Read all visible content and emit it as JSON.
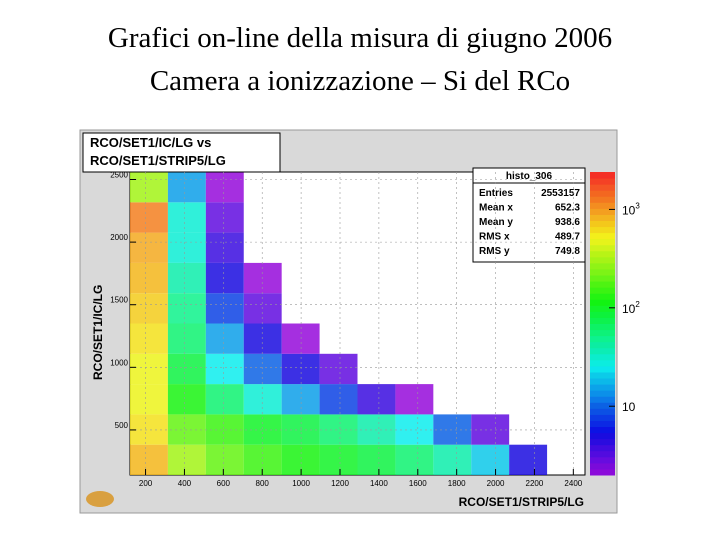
{
  "slide": {
    "title_lines": [
      "Grafici on-line della misura di giugno 2006",
      "Camera a ionizzazione – Si del RCo"
    ]
  },
  "chart_data": {
    "type": "heatmap",
    "title_lines": [
      "RCO/SET1/IC/LG vs",
      "RCO/SET1/STRIP5/LG"
    ],
    "x_label": "RCO/SET1/STRIP5/LG",
    "y_label": "RCO/SET1/IC/LG",
    "xlim": [
      120,
      2460
    ],
    "ylim": [
      140,
      2560
    ],
    "xticks": [
      200,
      400,
      600,
      800,
      1000,
      1200,
      1400,
      1600,
      1800,
      2000,
      2200,
      2400
    ],
    "yticks": [
      500,
      1000,
      1500,
      2000,
      2500
    ],
    "grid": true,
    "log_z": true,
    "zlim": [
      2,
      2400
    ],
    "zticks": [
      {
        "value": 10,
        "label": "10"
      },
      {
        "value": 100,
        "label": "10",
        "exponent": "2"
      },
      {
        "value": 1000,
        "label": "10",
        "exponent": "3"
      }
    ],
    "xbins": [
      120,
      315,
      510,
      705,
      900,
      1095,
      1290,
      1485,
      1680,
      1875,
      2070,
      2265,
      2460
    ],
    "ybins": [
      140,
      382,
      624,
      866,
      1108,
      1350,
      1592,
      1834,
      2076,
      2318,
      2560
    ],
    "z": [
      [
        800,
        300,
        200,
        150,
        120,
        100,
        80,
        60,
        40,
        20,
        5,
        0
      ],
      [
        600,
        200,
        150,
        100,
        80,
        60,
        40,
        25,
        10,
        3,
        0,
        0
      ],
      [
        500,
        120,
        60,
        30,
        15,
        8,
        4,
        2,
        0,
        0,
        0,
        0
      ],
      [
        500,
        80,
        25,
        10,
        5,
        3,
        0,
        0,
        0,
        0,
        0,
        0
      ],
      [
        600,
        60,
        15,
        5,
        2,
        0,
        0,
        0,
        0,
        0,
        0,
        0
      ],
      [
        700,
        50,
        8,
        3,
        0,
        0,
        0,
        0,
        0,
        0,
        0,
        0
      ],
      [
        800,
        40,
        5,
        2,
        0,
        0,
        0,
        0,
        0,
        0,
        0,
        0
      ],
      [
        900,
        30,
        4,
        0,
        0,
        0,
        0,
        0,
        0,
        0,
        0,
        0
      ],
      [
        1200,
        30,
        3,
        0,
        0,
        0,
        0,
        0,
        0,
        0,
        0,
        0
      ],
      [
        300,
        15,
        2,
        0,
        0,
        0,
        0,
        0,
        0,
        0,
        0,
        0
      ]
    ],
    "stats": {
      "title": "histo_306",
      "rows": [
        [
          "Entries",
          "2553157"
        ],
        [
          "Mean x",
          "652.3"
        ],
        [
          "Mean y",
          "938.6"
        ],
        [
          "RMS x",
          "489.7"
        ],
        [
          "RMS y",
          "749.8"
        ]
      ]
    }
  }
}
